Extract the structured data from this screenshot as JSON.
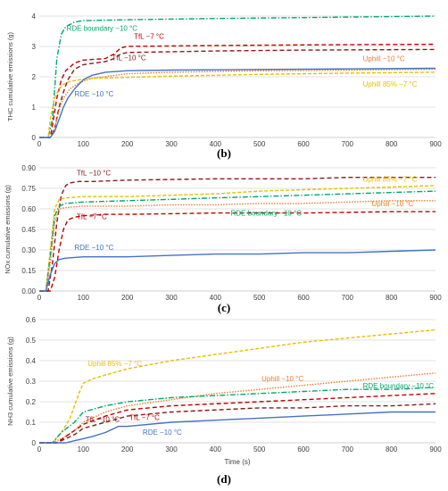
{
  "colors": {
    "RDE -10 °C": "#4472c4",
    "TfL -7 °C": "#c00000",
    "TfL -10 °C": "#8b1a1a",
    "Uphill -10 °C": "#ed7d31",
    "Uphill 85% -7 °C": "#e6c000",
    "RDE boundary -10 °C": "#00a86b"
  },
  "chart_data": [
    {
      "type": "line",
      "panel_label": "(b)",
      "ylabel": "THC cumulative emissions (g)",
      "xlabel": "",
      "xlim": [
        0,
        900
      ],
      "ylim": [
        0,
        4
      ],
      "yticks": [
        0,
        1,
        2,
        3,
        4
      ],
      "ytick_labels": [
        "0",
        "1",
        "2",
        "3",
        "4"
      ],
      "xticks": [
        0,
        100,
        200,
        300,
        400,
        500,
        600,
        700,
        800,
        900
      ],
      "xtick_labels": [
        "0",
        "100",
        "200",
        "300",
        "400",
        "500",
        "600",
        "700",
        "800",
        "900"
      ],
      "grid": true,
      "series": [
        {
          "name": "RDE boundary −10 °C",
          "style": "RDE boundary -10 °C",
          "x": [
            0,
            20,
            30,
            40,
            50,
            60,
            80,
            100,
            200,
            400,
            600,
            900
          ],
          "y": [
            0,
            0,
            0.6,
            2.6,
            3.4,
            3.65,
            3.8,
            3.85,
            3.88,
            3.92,
            3.95,
            4.0
          ]
        },
        {
          "name": "TfL −7 °C",
          "style": "TfL -7 °C",
          "x": [
            0,
            25,
            30,
            40,
            50,
            60,
            80,
            100,
            150,
            170,
            185,
            200,
            400,
            600,
            900
          ],
          "y": [
            0,
            0,
            0.4,
            1.3,
            1.9,
            2.2,
            2.45,
            2.55,
            2.6,
            2.75,
            2.95,
            3.0,
            3.03,
            3.05,
            3.07
          ]
        },
        {
          "name": "TfL −10 °C",
          "style": "TfL -10 °C",
          "x": [
            0,
            25,
            35,
            45,
            55,
            65,
            80,
            100,
            150,
            170,
            185,
            200,
            400,
            600,
            900
          ],
          "y": [
            0,
            0,
            0.3,
            1.0,
            1.5,
            1.9,
            2.25,
            2.4,
            2.5,
            2.6,
            2.75,
            2.8,
            2.85,
            2.88,
            2.9
          ]
        },
        {
          "name": "Uphill −10 °C",
          "style": "Uphill -10 °C",
          "x": [
            0,
            25,
            35,
            45,
            55,
            70,
            90,
            120,
            200,
            300,
            500,
            700,
            900
          ],
          "y": [
            0,
            0,
            0.3,
            0.9,
            1.3,
            1.6,
            1.8,
            1.95,
            2.1,
            2.15,
            2.2,
            2.22,
            2.25
          ]
        },
        {
          "name": "Uphill 85% −7 °C",
          "style": "Uphill 85% -7 °C",
          "x": [
            0,
            20,
            25,
            35,
            45,
            55,
            70,
            90,
            120,
            200,
            300,
            500,
            700,
            900
          ],
          "y": [
            0,
            0,
            0.6,
            1.3,
            1.6,
            1.75,
            1.85,
            1.9,
            1.95,
            1.98,
            2.02,
            2.08,
            2.12,
            2.15
          ]
        },
        {
          "name": "RDE −10 °C",
          "style": "RDE -10 °C",
          "x": [
            0,
            25,
            35,
            45,
            55,
            65,
            80,
            100,
            120,
            150,
            200,
            300,
            500,
            700,
            900
          ],
          "y": [
            0,
            0,
            0.2,
            0.6,
            1.0,
            1.3,
            1.6,
            1.9,
            2.05,
            2.15,
            2.2,
            2.22,
            2.24,
            2.26,
            2.28
          ]
        }
      ],
      "annotations": [
        {
          "text": "RDE boundary −10 °C",
          "style": "RDE boundary -10 °C",
          "x": 62,
          "y": 3.52
        },
        {
          "text": "TfL −7 °C",
          "style": "TfL -7 °C",
          "x": 215,
          "y": 3.25
        },
        {
          "text": "TfL −10 °C",
          "style": "TfL -10 °C",
          "x": 165,
          "y": 2.55
        },
        {
          "text": "Uphill −10 °C",
          "style": "Uphill -10 °C",
          "x": 735,
          "y": 2.52
        },
        {
          "text": "RDE −10 °C",
          "style": "RDE -10 °C",
          "x": 80,
          "y": 1.35
        },
        {
          "text": "Uphill 85% −7 °C",
          "style": "Uphill 85% -7 °C",
          "x": 735,
          "y": 1.68
        }
      ]
    },
    {
      "type": "line",
      "panel_label": "(c)",
      "ylabel": "NOx cumulative emissions (g)",
      "xlabel": "",
      "xlim": [
        0,
        900
      ],
      "ylim": [
        0,
        0.9
      ],
      "yticks": [
        0,
        0.15,
        0.3,
        0.45,
        0.6,
        0.75,
        0.9
      ],
      "ytick_labels": [
        "0.00",
        "0.15",
        "0.30",
        "0.45",
        "0.60",
        "0.75",
        "0.90"
      ],
      "xticks": [
        0,
        100,
        200,
        300,
        400,
        500,
        600,
        700,
        800,
        900
      ],
      "xtick_labels": [
        "0",
        "100",
        "200",
        "300",
        "400",
        "500",
        "600",
        "700",
        "800",
        "900"
      ],
      "grid": true,
      "series": [
        {
          "name": "TfL −10 °C",
          "style": "TfL -10 °C",
          "x": [
            0,
            20,
            30,
            40,
            50,
            60,
            70,
            90,
            120,
            200,
            400,
            600,
            700,
            800,
            900
          ],
          "y": [
            0,
            0,
            0.2,
            0.5,
            0.7,
            0.77,
            0.79,
            0.8,
            0.8,
            0.81,
            0.82,
            0.82,
            0.83,
            0.83,
            0.83
          ]
        },
        {
          "name": "Uphill 85% −7 °C",
          "style": "Uphill 85% -7 °C",
          "x": [
            0,
            15,
            25,
            35,
            45,
            60,
            100,
            200,
            300,
            400,
            500,
            600,
            700,
            800,
            900
          ],
          "y": [
            0,
            0,
            0.3,
            0.6,
            0.67,
            0.68,
            0.69,
            0.69,
            0.7,
            0.71,
            0.73,
            0.74,
            0.75,
            0.76,
            0.77
          ]
        },
        {
          "name": "RDE boundary −10 °C",
          "style": "RDE boundary -10 °C",
          "x": [
            0,
            15,
            25,
            35,
            45,
            60,
            100,
            200,
            300,
            400,
            500,
            600,
            700,
            800,
            900
          ],
          "y": [
            0,
            0,
            0.25,
            0.55,
            0.62,
            0.64,
            0.65,
            0.66,
            0.67,
            0.68,
            0.69,
            0.7,
            0.71,
            0.72,
            0.73
          ]
        },
        {
          "name": "Uphill −10 °C",
          "style": "Uphill -10 °C",
          "x": [
            0,
            15,
            25,
            35,
            45,
            60,
            100,
            200,
            300,
            400,
            500,
            600,
            700,
            800,
            900
          ],
          "y": [
            0,
            0,
            0.2,
            0.5,
            0.6,
            0.61,
            0.62,
            0.62,
            0.63,
            0.63,
            0.64,
            0.64,
            0.65,
            0.66,
            0.66
          ]
        },
        {
          "name": "TfL −7 °C",
          "style": "TfL -7 °C",
          "x": [
            0,
            25,
            35,
            45,
            55,
            65,
            80,
            100,
            150,
            200,
            400,
            600,
            800,
            900
          ],
          "y": [
            0,
            0,
            0.1,
            0.3,
            0.45,
            0.52,
            0.54,
            0.55,
            0.56,
            0.56,
            0.57,
            0.57,
            0.58,
            0.58
          ]
        },
        {
          "name": "RDE −10 °C",
          "style": "RDE -10 °C",
          "x": [
            0,
            15,
            25,
            35,
            45,
            60,
            100,
            200,
            300,
            400,
            500,
            600,
            700,
            800,
            900
          ],
          "y": [
            0,
            0,
            0.12,
            0.2,
            0.23,
            0.24,
            0.25,
            0.25,
            0.26,
            0.27,
            0.27,
            0.28,
            0.28,
            0.29,
            0.3
          ]
        }
      ],
      "annotations": [
        {
          "text": "TfL −10 °C",
          "style": "TfL -10 °C",
          "x": 85,
          "y": 0.845
        },
        {
          "text": "Uphill 85% −7 °C",
          "style": "Uphill 85% -7 °C",
          "x": 735,
          "y": 0.8
        },
        {
          "text": "TfL −7 °C",
          "style": "TfL -7 °C",
          "x": 85,
          "y": 0.525
        },
        {
          "text": "RDE boundary −10 °C",
          "style": "RDE boundary -10 °C",
          "x": 435,
          "y": 0.55
        },
        {
          "text": "Uphill −10 °C",
          "style": "Uphill -10 °C",
          "x": 755,
          "y": 0.62
        },
        {
          "text": "RDE −10 °C",
          "style": "RDE -10 °C",
          "x": 80,
          "y": 0.3
        }
      ]
    },
    {
      "type": "line",
      "panel_label": "(d)",
      "ylabel": "NH3 cumulative emissions (g)",
      "xlabel": "Time (s)",
      "xlim": [
        0,
        900
      ],
      "ylim": [
        0,
        0.6
      ],
      "yticks": [
        0,
        0.1,
        0.2,
        0.3,
        0.4,
        0.5,
        0.6
      ],
      "ytick_labels": [
        "0",
        "0.1",
        "0.2",
        "0.3",
        "0.4",
        "0.5",
        "0.6"
      ],
      "xticks": [
        0,
        100,
        200,
        300,
        400,
        500,
        600,
        700,
        800,
        900
      ],
      "xtick_labels": [
        "0",
        "100",
        "200",
        "300",
        "400",
        "500",
        "600",
        "700",
        "800",
        "900"
      ],
      "grid": true,
      "series": [
        {
          "name": "Uphill 85% −7 °C",
          "style": "Uphill 85% -7 °C",
          "x": [
            0,
            30,
            50,
            70,
            90,
            100,
            120,
            150,
            200,
            300,
            400,
            500,
            600,
            700,
            800,
            900
          ],
          "y": [
            0,
            0,
            0.05,
            0.12,
            0.24,
            0.29,
            0.31,
            0.33,
            0.36,
            0.4,
            0.43,
            0.46,
            0.49,
            0.51,
            0.53,
            0.55
          ]
        },
        {
          "name": "Uphill −10 °C",
          "style": "Uphill -10 °C",
          "x": [
            0,
            30,
            50,
            80,
            100,
            150,
            200,
            300,
            400,
            500,
            600,
            700,
            800,
            900
          ],
          "y": [
            0,
            0,
            0.02,
            0.06,
            0.1,
            0.15,
            0.18,
            0.21,
            0.24,
            0.26,
            0.28,
            0.3,
            0.32,
            0.34
          ]
        },
        {
          "name": "RDE boundary −10 °C",
          "style": "RDE boundary -10 °C",
          "x": [
            0,
            30,
            50,
            80,
            100,
            150,
            200,
            300,
            400,
            500,
            600,
            700,
            800,
            900
          ],
          "y": [
            0,
            0,
            0.05,
            0.1,
            0.15,
            0.18,
            0.2,
            0.22,
            0.23,
            0.24,
            0.25,
            0.26,
            0.26,
            0.27
          ]
        },
        {
          "name": "TfL −7 °C",
          "style": "TfL -7 °C",
          "x": [
            0,
            40,
            60,
            80,
            100,
            150,
            200,
            300,
            400,
            500,
            600,
            700,
            800,
            900
          ],
          "y": [
            0,
            0,
            0.03,
            0.06,
            0.09,
            0.13,
            0.16,
            0.18,
            0.19,
            0.2,
            0.21,
            0.22,
            0.23,
            0.24
          ]
        },
        {
          "name": "TfL −10 °C",
          "style": "TfL -10 °C",
          "x": [
            0,
            40,
            60,
            80,
            100,
            150,
            200,
            300,
            400,
            500,
            600,
            700,
            800,
            900
          ],
          "y": [
            0,
            0,
            0.02,
            0.04,
            0.07,
            0.1,
            0.13,
            0.15,
            0.16,
            0.17,
            0.17,
            0.18,
            0.18,
            0.19
          ]
        },
        {
          "name": "RDE −10 °C",
          "style": "RDE -10 °C",
          "x": [
            0,
            60,
            80,
            100,
            120,
            150,
            170,
            180,
            200,
            300,
            400,
            500,
            600,
            700,
            800,
            900
          ],
          "y": [
            0,
            0,
            0.01,
            0.02,
            0.03,
            0.05,
            0.07,
            0.08,
            0.08,
            0.1,
            0.11,
            0.12,
            0.13,
            0.14,
            0.15,
            0.15
          ]
        }
      ],
      "annotations": [
        {
          "text": "Uphill 85% −7 °C",
          "style": "Uphill 85% -7 °C",
          "x": 110,
          "y": 0.375
        },
        {
          "text": "Uphill −10 °C",
          "style": "Uphill -10 °C",
          "x": 505,
          "y": 0.3
        },
        {
          "text": "RDE boundary −10 °C",
          "style": "RDE boundary -10 °C",
          "x": 735,
          "y": 0.265
        },
        {
          "text": "TfL −10 °C",
          "style": "TfL -10 °C",
          "x": 105,
          "y": 0.102
        },
        {
          "text": "TfL −7 °C",
          "style": "TfL -7 °C",
          "x": 205,
          "y": 0.11
        },
        {
          "text": "RDE −10 °C",
          "style": "RDE -10 °C",
          "x": 235,
          "y": 0.04
        }
      ]
    }
  ]
}
